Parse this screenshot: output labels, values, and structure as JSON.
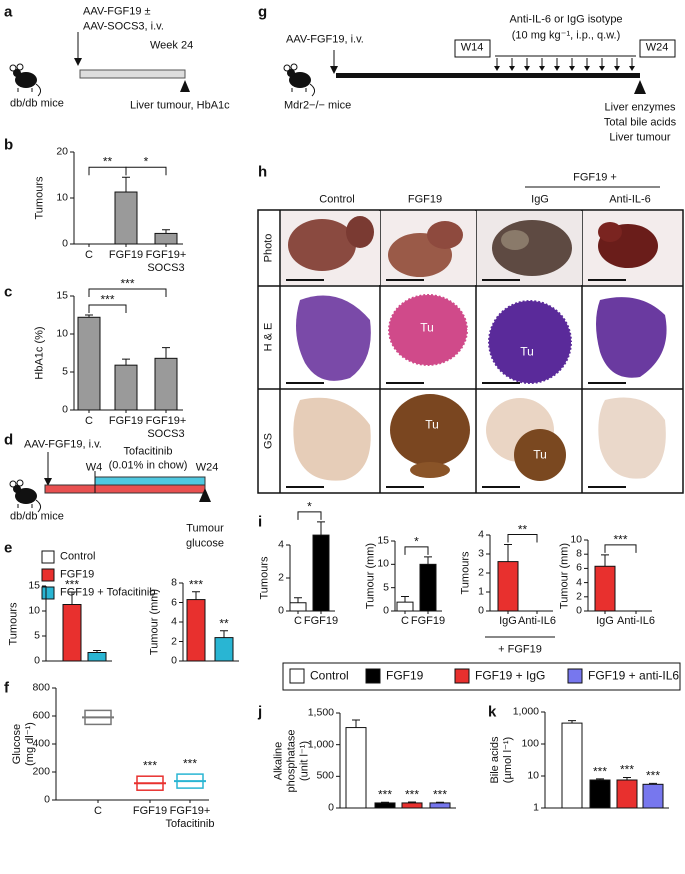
{
  "panel_letters": [
    "a",
    "b",
    "c",
    "d",
    "e",
    "f",
    "g",
    "h",
    "i",
    "j",
    "k"
  ],
  "diagram_a": {
    "treatment": [
      "AAV-FGF19 ±",
      "AAV-SOCS3, i.v."
    ],
    "end": "Week 24",
    "mice": "db/db mice",
    "readout": "Liver tumour, HbA1c"
  },
  "diagram_d": {
    "treatment": "AAV-FGF19, i.v.",
    "drug": [
      "Tofacitinib",
      "(0.01% in chow)"
    ],
    "start": "W4",
    "end": "W24",
    "mice": "db/db mice",
    "readout": [
      "Tumour",
      "glucose"
    ]
  },
  "diagram_g": {
    "treatment": "AAV-FGF19, i.v.",
    "antibody": [
      "Anti-IL-6 or IgG isotype",
      "(10 mg kg⁻¹, i.p., q.w.)"
    ],
    "start": "W14",
    "end": "W24",
    "mice": "Mdr2−/− mice",
    "readouts": [
      "Liver enzymes",
      "Total bile acids",
      "Liver tumour"
    ]
  },
  "panel_h": {
    "group": "FGF19 +",
    "columns": [
      "Control",
      "FGF19",
      "IgG",
      "Anti-IL-6"
    ],
    "rows": [
      "Photo",
      "H & E",
      "GS"
    ],
    "tumour_labels": [
      "Tu",
      "Tu",
      "Tu",
      "Tu"
    ]
  },
  "legend_e": [
    {
      "name": "Control",
      "color": "#ffffff"
    },
    {
      "name": "FGF19",
      "color": "#e8302e"
    },
    {
      "name": "FGF19 + Tofacitinib",
      "color": "#29b5d3"
    }
  ],
  "legend_i": [
    {
      "name": "Control",
      "color": "#ffffff"
    },
    {
      "name": "FGF19",
      "color": "#000000"
    },
    {
      "name": "FGF19 + IgG",
      "color": "#e8302e"
    },
    {
      "name": "FGF19 + anti-IL6",
      "color": "#7777ee"
    }
  ],
  "group_label_i": "+ FGF19",
  "chart_data": [
    {
      "type": "bar",
      "ylabel": "Tumours",
      "categories": [
        "C",
        "FGF19",
        "FGF19+ SOCS3"
      ],
      "values": [
        0,
        11.3,
        2.3
      ],
      "errors": [
        0,
        3.2,
        0.8
      ],
      "colors": [
        "#9a9a9a",
        "#9a9a9a",
        "#9a9a9a"
      ],
      "ylim": [
        0,
        20
      ],
      "yticks": [
        0,
        10,
        20
      ],
      "significance": [
        {
          "label": "**",
          "between": [
            0,
            1
          ]
        },
        {
          "label": "*",
          "between": [
            1,
            2
          ]
        }
      ]
    },
    {
      "type": "bar",
      "ylabel": "HbA1c (%)",
      "categories": [
        "C",
        "FGF19",
        "FGF19+ SOCS3"
      ],
      "values": [
        12.2,
        5.9,
        6.8
      ],
      "errors": [
        0.3,
        0.8,
        1.4
      ],
      "colors": [
        "#9a9a9a",
        "#9a9a9a",
        "#9a9a9a"
      ],
      "ylim": [
        0,
        15
      ],
      "yticks": [
        0,
        5,
        10,
        15
      ],
      "significance": [
        {
          "label": "***",
          "between": [
            0,
            1
          ]
        },
        {
          "label": "***",
          "between": [
            0,
            2
          ]
        }
      ]
    },
    {
      "type": "bar",
      "ylabel": "Tumours",
      "values": [
        0,
        11.3,
        1.7
      ],
      "errors": [
        0,
        2.5,
        0.4
      ],
      "colors": [
        "#ffffff",
        "#e8302e",
        "#29b5d3"
      ],
      "ylim": [
        0,
        15
      ],
      "yticks": [
        0,
        5,
        10,
        15
      ],
      "significance": [
        {
          "label": "***",
          "over": 1
        }
      ]
    },
    {
      "type": "bar",
      "ylabel": "Tumour (mm)",
      "values": [
        0,
        6.3,
        2.4
      ],
      "errors": [
        0,
        0.8,
        0.7
      ],
      "colors": [
        "#ffffff",
        "#e8302e",
        "#29b5d3"
      ],
      "ylim": [
        0,
        8
      ],
      "yticks": [
        0,
        2,
        4,
        6,
        8
      ],
      "significance": [
        {
          "label": "***",
          "over": 1
        },
        {
          "label": "**",
          "over": 2
        }
      ]
    },
    {
      "type": "box",
      "ylabel": "Glucose (mg dl⁻¹)",
      "categories": [
        "C",
        "FGF19",
        "FGF19+ Tofacitinib"
      ],
      "values": [
        590,
        120,
        135
      ],
      "colors": [
        "#777777",
        "#e8302e",
        "#29b5d3"
      ],
      "ylim": [
        0,
        800
      ],
      "yticks": [
        0,
        200,
        400,
        600,
        800
      ],
      "significance": [
        {
          "label": "***",
          "over": 1
        },
        {
          "label": "***",
          "over": 2
        }
      ]
    },
    {
      "type": "bar",
      "ylabel": "Tumours",
      "categories": [
        "C",
        "FGF19"
      ],
      "values": [
        0.5,
        4.6
      ],
      "errors": [
        0.3,
        0.8
      ],
      "colors": [
        "#ffffff",
        "#000000"
      ],
      "ylim": [
        0,
        4
      ],
      "yticks": [
        0,
        2,
        4
      ],
      "significance": [
        {
          "label": "*",
          "between": [
            0,
            1
          ]
        }
      ]
    },
    {
      "type": "bar",
      "ylabel": "Tumour (mm)",
      "categories": [
        "C",
        "FGF19"
      ],
      "values": [
        1.9,
        10.0
      ],
      "errors": [
        1.2,
        1.6
      ],
      "colors": [
        "#ffffff",
        "#000000"
      ],
      "ylim": [
        0,
        15
      ],
      "yticks": [
        0,
        5,
        10,
        15
      ],
      "significance": [
        {
          "label": "*",
          "between": [
            0,
            1
          ]
        }
      ]
    },
    {
      "type": "bar",
      "ylabel": "Tumours",
      "categories": [
        "IgG",
        "Anti-IL6"
      ],
      "values": [
        2.6,
        0
      ],
      "errors": [
        0.9,
        0
      ],
      "colors": [
        "#e8302e",
        "#7777ee"
      ],
      "ylim": [
        0,
        4
      ],
      "yticks": [
        0,
        1,
        2,
        3,
        4
      ],
      "significance": [
        {
          "label": "**",
          "between": [
            0,
            1
          ]
        }
      ]
    },
    {
      "type": "bar",
      "ylabel": "Tumour (mm)",
      "categories": [
        "IgG",
        "Anti-IL6"
      ],
      "values": [
        6.3,
        0
      ],
      "errors": [
        1.6,
        0
      ],
      "colors": [
        "#e8302e",
        "#7777ee"
      ],
      "ylim": [
        0,
        10
      ],
      "yticks": [
        0,
        2,
        4,
        6,
        8,
        10
      ],
      "significance": [
        {
          "label": "***",
          "between": [
            0,
            1
          ]
        }
      ]
    },
    {
      "type": "bar",
      "ylabel": "Alkaline phosphatase (unit l⁻¹)",
      "values": [
        1270,
        80,
        80,
        80
      ],
      "errors": [
        120,
        10,
        15,
        10
      ],
      "colors": [
        "#ffffff",
        "#000000",
        "#e8302e",
        "#7777ee"
      ],
      "ylim": [
        0,
        1500
      ],
      "yticks": [
        0,
        500,
        {
          "value": 1000,
          "label": "1,000"
        },
        {
          "value": 1500,
          "label": "1,500"
        }
      ],
      "significance": [
        {
          "label": "***",
          "over": 1
        },
        {
          "label": "***",
          "over": 2
        },
        {
          "label": "***",
          "over": 3
        }
      ]
    },
    {
      "type": "bar",
      "ylabel": "Bile acids (µmol l⁻¹)",
      "log_scale": true,
      "values": [
        450,
        7.5,
        7.5,
        5.5
      ],
      "errors": [
        90,
        0.6,
        1.5,
        0.4
      ],
      "colors": [
        "#ffffff",
        "#000000",
        "#e8302e",
        "#7777ee"
      ],
      "ylim": [
        1,
        1000
      ],
      "yticks": [
        1,
        10,
        100,
        {
          "value": 1000,
          "label": "1,000"
        }
      ],
      "significance": [
        {
          "label": "***",
          "over": 1
        },
        {
          "label": "***",
          "over": 2
        },
        {
          "label": "***",
          "over": 3
        }
      ]
    }
  ]
}
